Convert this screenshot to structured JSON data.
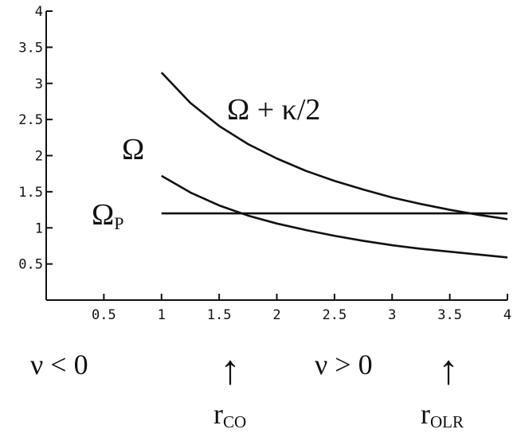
{
  "chart_data": {
    "type": "line",
    "title": "",
    "xlabel": "",
    "ylabel": "",
    "xlim": [
      0,
      4
    ],
    "ylim": [
      0,
      4
    ],
    "grid": false,
    "xticks": [
      0.5,
      1,
      1.5,
      2,
      2.5,
      3,
      3.5,
      4
    ],
    "yticks": [
      0.5,
      1,
      1.5,
      2,
      2.5,
      3,
      3.5,
      4
    ],
    "xtick_labels": [
      "0.5",
      "1",
      "1.5",
      "2",
      "2.5",
      "3",
      "3.5",
      "4"
    ],
    "ytick_labels": [
      "0.5",
      "1",
      "1.5",
      "2",
      "2.5",
      "3",
      "3.5",
      "4"
    ],
    "series": [
      {
        "name": "Ω + κ/2",
        "x": [
          1.0,
          1.25,
          1.5,
          1.75,
          2.0,
          2.25,
          2.5,
          2.75,
          3.0,
          3.25,
          3.5,
          3.75,
          4.0
        ],
        "y": [
          3.15,
          2.73,
          2.41,
          2.16,
          1.96,
          1.79,
          1.65,
          1.53,
          1.42,
          1.33,
          1.25,
          1.18,
          1.12
        ]
      },
      {
        "name": "Ω",
        "x": [
          1.0,
          1.25,
          1.5,
          1.75,
          2.0,
          2.25,
          2.5,
          2.75,
          3.0,
          3.25,
          3.5,
          3.75,
          4.0
        ],
        "y": [
          1.72,
          1.49,
          1.31,
          1.17,
          1.06,
          0.97,
          0.89,
          0.82,
          0.76,
          0.71,
          0.67,
          0.63,
          0.59
        ]
      },
      {
        "name": "ΩP",
        "x": [
          1.0,
          4.0
        ],
        "y": [
          1.2,
          1.2
        ]
      }
    ],
    "curve_labels": {
      "omega_plus_kappa": "Ω + κ/2",
      "omega": "Ω",
      "omega_p_main": "Ω",
      "omega_p_sub": "P"
    },
    "annotations": {
      "nu_negative": "ν < 0",
      "nu_positive": "ν > 0",
      "arrow_glyph": "↑",
      "r_co_main": "r",
      "r_co_sub": "CO",
      "r_olr_main": "r",
      "r_olr_sub": "OLR"
    }
  }
}
